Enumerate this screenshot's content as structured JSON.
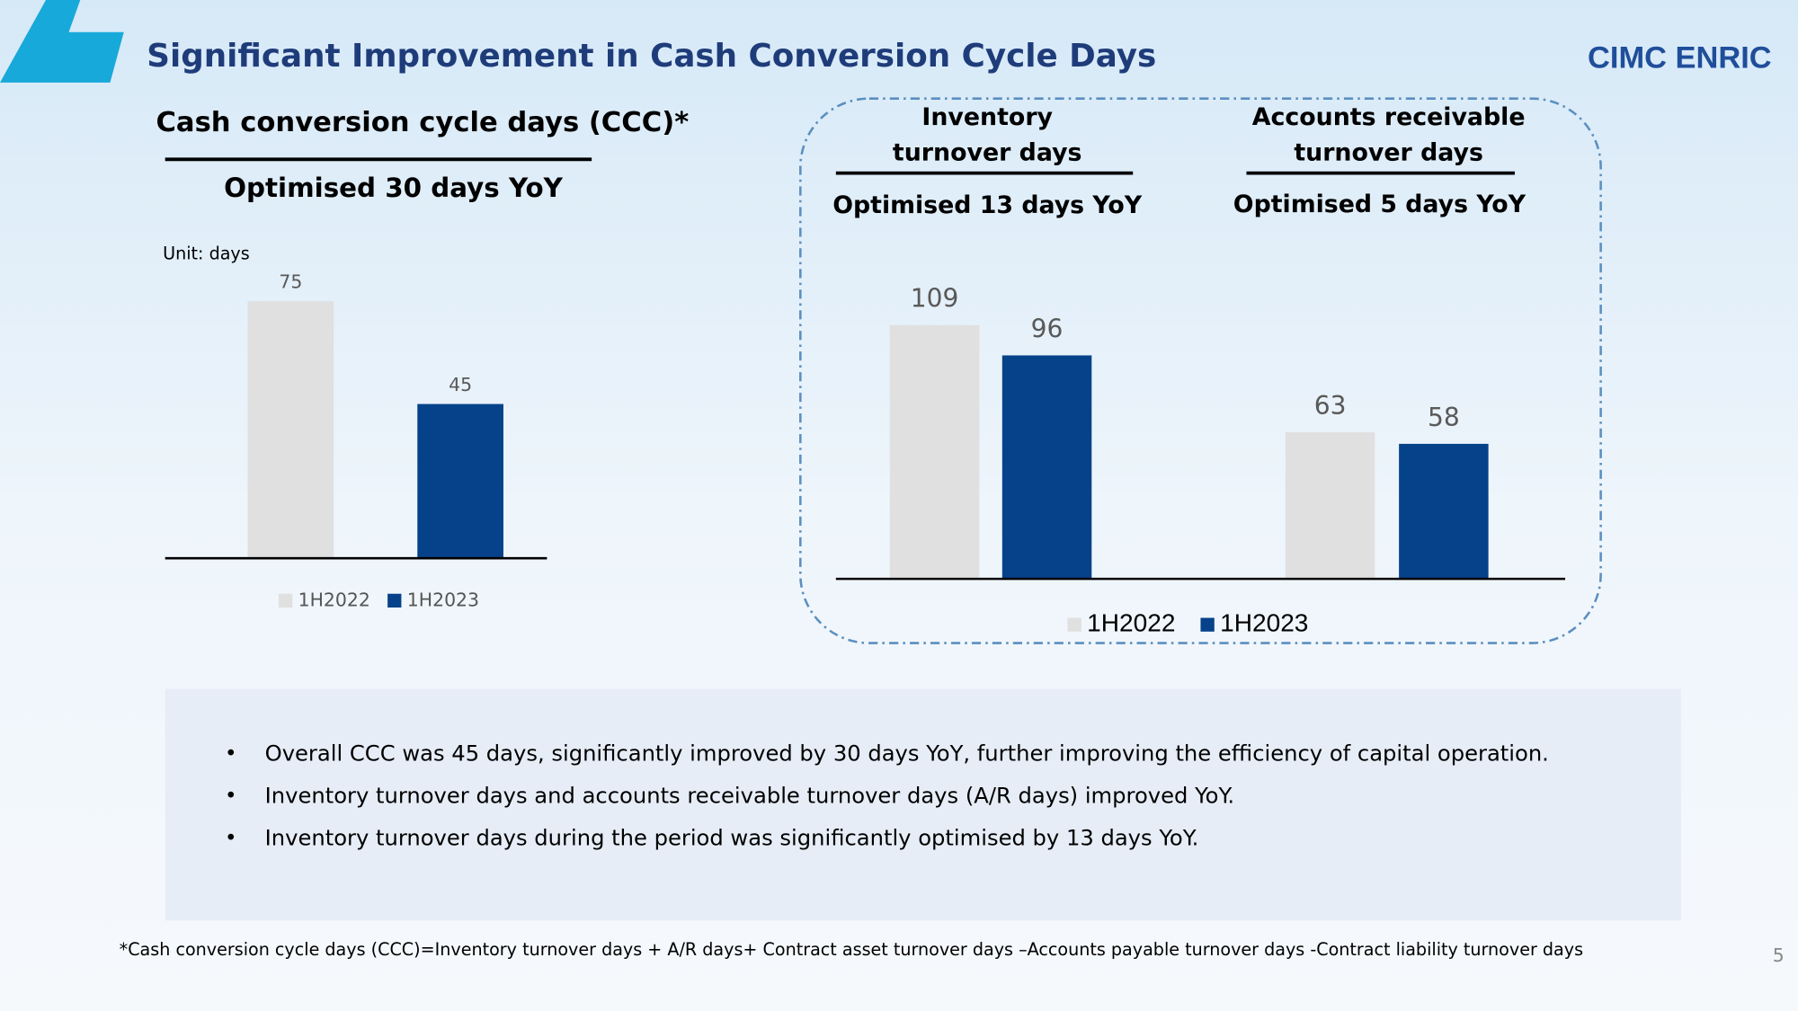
{
  "title": "Significant Improvement in Cash Conversion Cycle Days",
  "logo": "CIMC ENRIC",
  "page_number": 5,
  "bullets": [
    "Overall CCC was 45 days, significantly improved by 30 days YoY, further improving the efficiency of capital operation.",
    "Inventory turnover days and accounts receivable turnover days (A/R days) improved YoY.",
    "Inventory turnover days during the period was significantly optimised by 13 days YoY."
  ],
  "footnote": "*Cash conversion cycle days (CCC)=Inventory turnover days + A/R days+ Contract asset turnover days –Accounts payable turnover days -Contract liability turnover days",
  "chart_data": [
    {
      "type": "bar",
      "title": "Cash conversion cycle days (CCC)*",
      "subtitle": "Optimised 30 days YoY",
      "y_label": "Unit: days",
      "ylim": [
        0,
        100
      ],
      "series": [
        {
          "name": "1H2022",
          "color": "#e0e0e0",
          "values": [
            75
          ]
        },
        {
          "name": "1H2023",
          "color": "#06428a",
          "values": [
            45
          ]
        }
      ]
    },
    {
      "type": "bar",
      "categories": [
        "Inventory turnover days",
        "Accounts receivable turnover days"
      ],
      "annotations": [
        "Optimised 13  days YoY",
        "Optimised 5 days YoY"
      ],
      "ylim": [
        0,
        130
      ],
      "series": [
        {
          "name": "1H2022",
          "color": "#e0e0e0",
          "values": [
            109,
            63
          ]
        },
        {
          "name": "1H2023",
          "color": "#06428a",
          "values": [
            96,
            58
          ]
        }
      ]
    }
  ]
}
